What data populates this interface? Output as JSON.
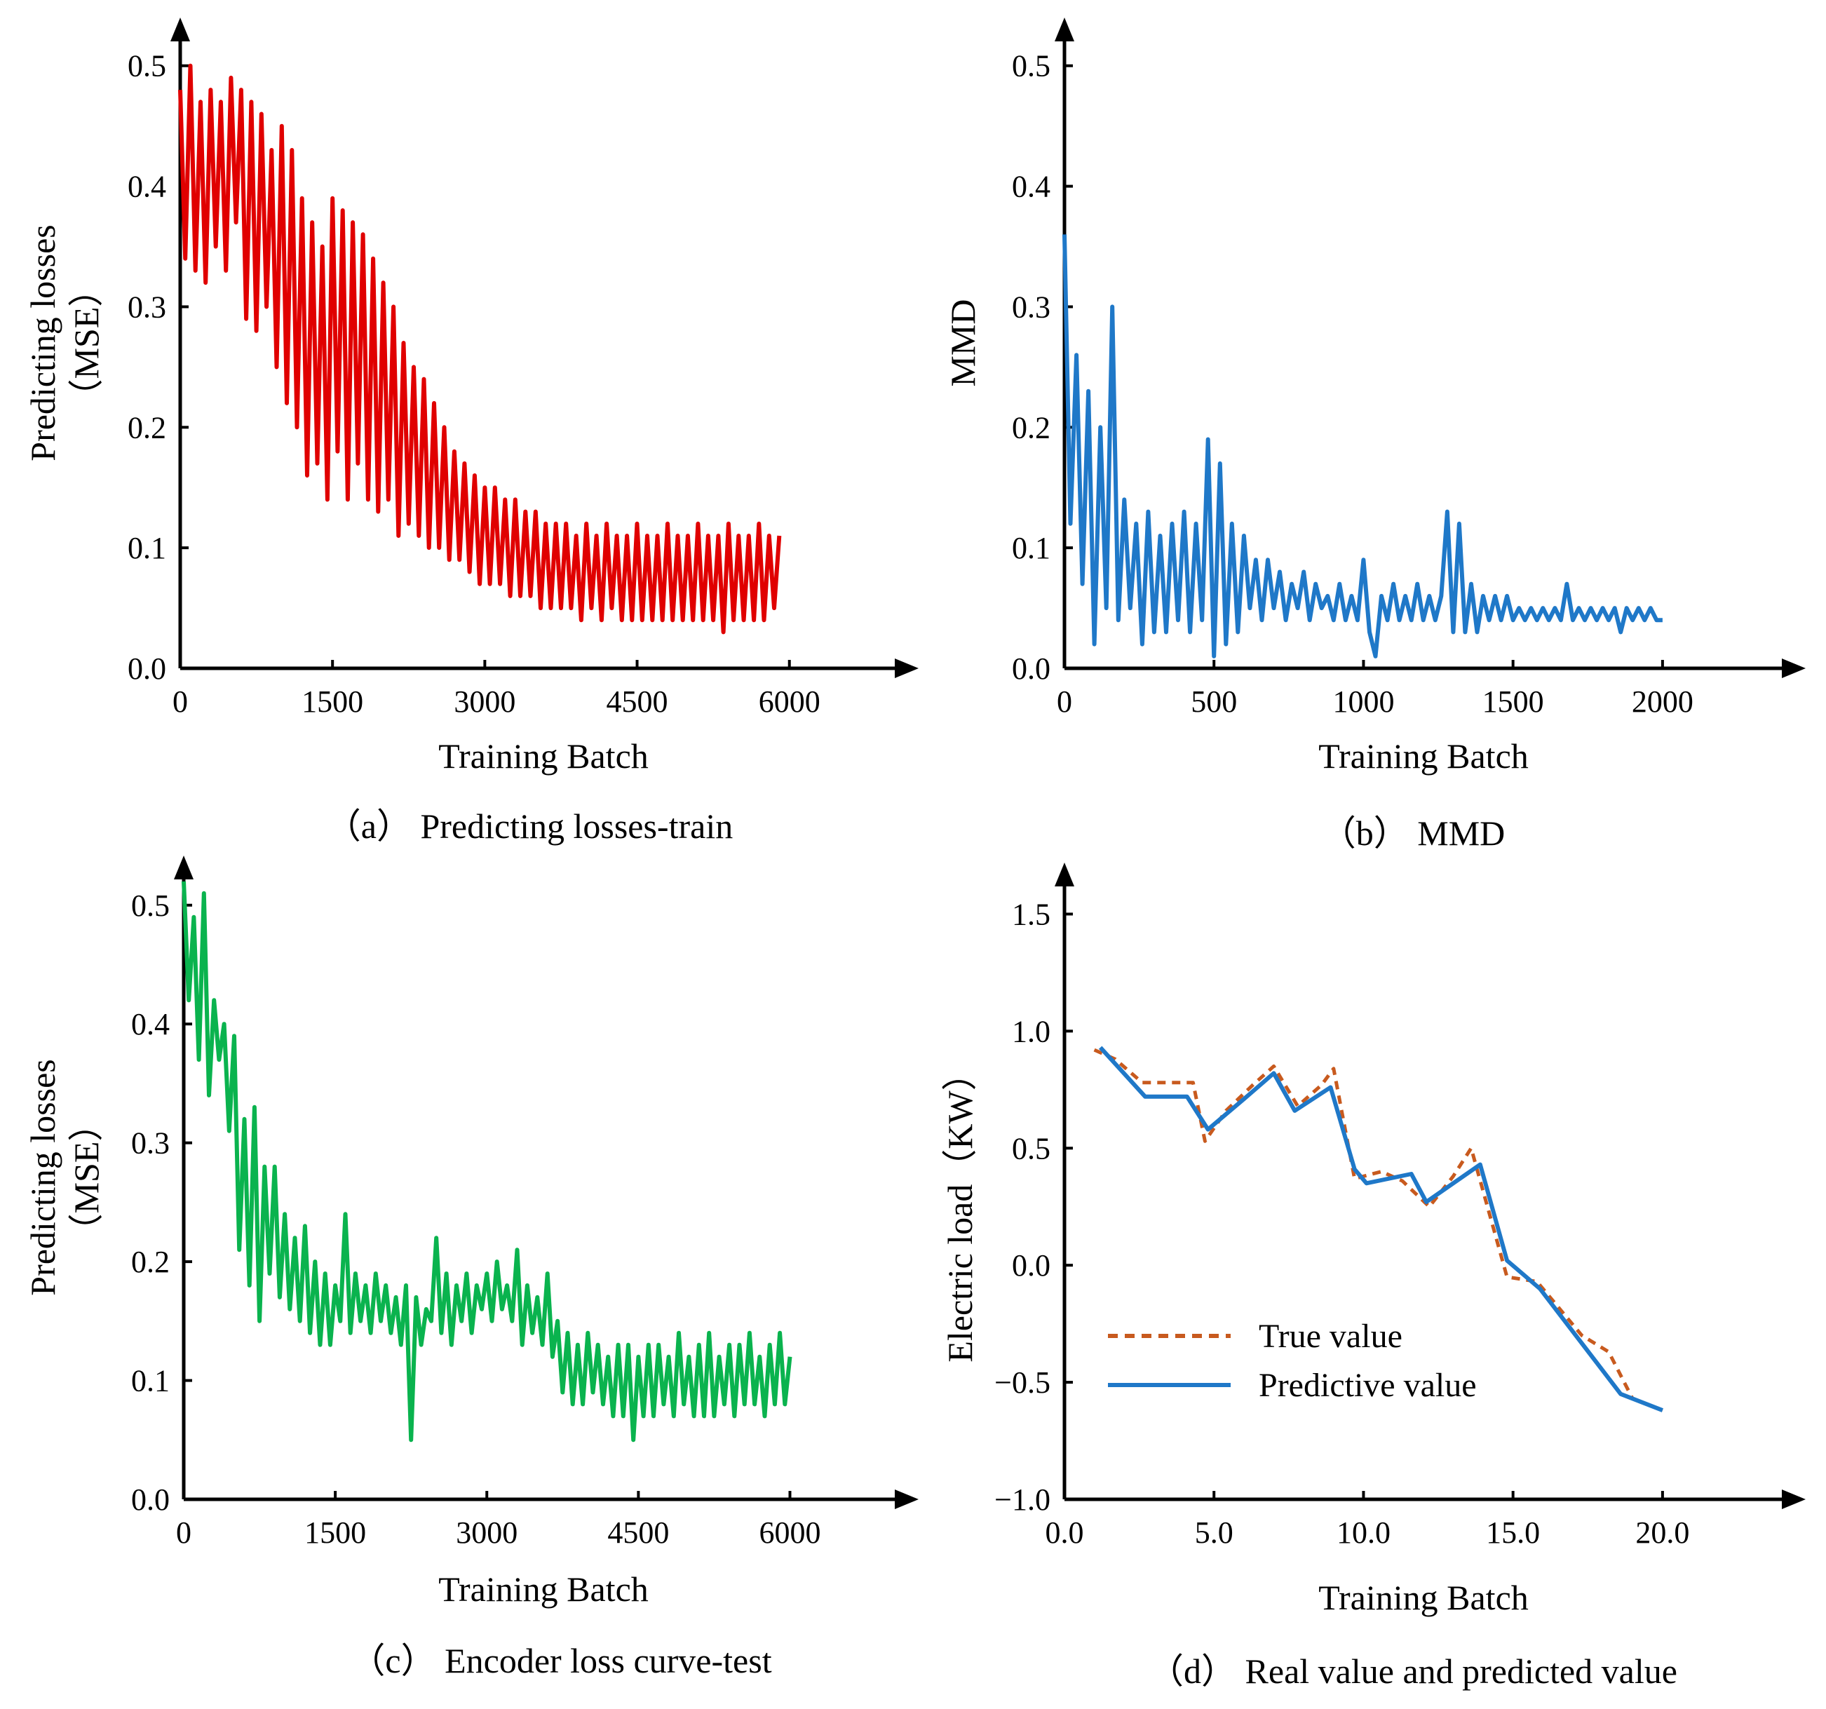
{
  "chart_data": [
    {
      "id": "a",
      "type": "line",
      "caption": "（a） Predicting losses-train",
      "xlabel": "Training Batch",
      "ylabel": "Predicting losses",
      "ylabel2": "（MSE）",
      "xticks": [
        "0",
        "1500",
        "3000",
        "4500",
        "6000"
      ],
      "yticks": [
        "0.0",
        "0.1",
        "0.2",
        "0.3",
        "0.4",
        "0.5"
      ],
      "xlim": [
        0,
        7100
      ],
      "ylim": [
        0,
        0.54
      ],
      "series": [
        {
          "color": "#e00000",
          "x": [
            0,
            50,
            100,
            150,
            200,
            250,
            300,
            350,
            400,
            450,
            500,
            550,
            600,
            650,
            700,
            750,
            800,
            850,
            900,
            950,
            1000,
            1050,
            1100,
            1150,
            1200,
            1250,
            1300,
            1350,
            1400,
            1450,
            1500,
            1550,
            1600,
            1650,
            1700,
            1750,
            1800,
            1850,
            1900,
            1950,
            2000,
            2050,
            2100,
            2150,
            2200,
            2250,
            2300,
            2350,
            2400,
            2450,
            2500,
            2550,
            2600,
            2650,
            2700,
            2750,
            2800,
            2850,
            2900,
            2950,
            3000,
            3050,
            3100,
            3150,
            3200,
            3250,
            3300,
            3350,
            3400,
            3450,
            3500,
            3550,
            3600,
            3650,
            3700,
            3750,
            3800,
            3850,
            3900,
            3950,
            4000,
            4050,
            4100,
            4150,
            4200,
            4250,
            4300,
            4350,
            4400,
            4450,
            4500,
            4550,
            4600,
            4650,
            4700,
            4750,
            4800,
            4850,
            4900,
            4950,
            5000,
            5050,
            5100,
            5150,
            5200,
            5250,
            5300,
            5350,
            5400,
            5450,
            5500,
            5550,
            5600,
            5650,
            5700,
            5750,
            5800,
            5850,
            5900
          ],
          "values": [
            0.48,
            0.34,
            0.5,
            0.33,
            0.47,
            0.32,
            0.48,
            0.35,
            0.47,
            0.33,
            0.49,
            0.37,
            0.48,
            0.29,
            0.47,
            0.28,
            0.46,
            0.3,
            0.43,
            0.25,
            0.45,
            0.22,
            0.43,
            0.2,
            0.39,
            0.16,
            0.37,
            0.17,
            0.35,
            0.14,
            0.39,
            0.18,
            0.38,
            0.14,
            0.37,
            0.17,
            0.36,
            0.14,
            0.34,
            0.13,
            0.32,
            0.14,
            0.3,
            0.11,
            0.27,
            0.12,
            0.25,
            0.11,
            0.24,
            0.1,
            0.22,
            0.1,
            0.2,
            0.09,
            0.18,
            0.09,
            0.17,
            0.08,
            0.16,
            0.07,
            0.15,
            0.07,
            0.15,
            0.07,
            0.14,
            0.06,
            0.14,
            0.06,
            0.13,
            0.06,
            0.13,
            0.05,
            0.12,
            0.05,
            0.12,
            0.05,
            0.12,
            0.05,
            0.11,
            0.04,
            0.12,
            0.05,
            0.11,
            0.04,
            0.12,
            0.05,
            0.11,
            0.04,
            0.11,
            0.04,
            0.12,
            0.04,
            0.11,
            0.04,
            0.11,
            0.04,
            0.12,
            0.04,
            0.11,
            0.04,
            0.11,
            0.04,
            0.12,
            0.04,
            0.11,
            0.04,
            0.11,
            0.03,
            0.12,
            0.04,
            0.11,
            0.04,
            0.11,
            0.04,
            0.12,
            0.04,
            0.11,
            0.05,
            0.11
          ]
        }
      ]
    },
    {
      "id": "b",
      "type": "line",
      "caption": "（b） MMD",
      "xlabel": "Training Batch",
      "ylabel": "MMD",
      "ylabel2": "",
      "xticks": [
        "0",
        "500",
        "1000",
        "1500",
        "2000"
      ],
      "yticks": [
        "0.0",
        "0.1",
        "0.2",
        "0.3",
        "0.4",
        "0.5"
      ],
      "xlim": [
        0,
        2420
      ],
      "ylim": [
        0,
        0.54
      ],
      "series": [
        {
          "color": "#1f78c8",
          "x": [
            0,
            20,
            40,
            60,
            80,
            100,
            120,
            140,
            160,
            180,
            200,
            220,
            240,
            260,
            280,
            300,
            320,
            340,
            360,
            380,
            400,
            420,
            440,
            460,
            480,
            500,
            520,
            540,
            560,
            580,
            600,
            620,
            640,
            660,
            680,
            700,
            720,
            740,
            760,
            780,
            800,
            820,
            840,
            860,
            880,
            900,
            920,
            940,
            960,
            980,
            1000,
            1020,
            1040,
            1060,
            1080,
            1100,
            1120,
            1140,
            1160,
            1180,
            1200,
            1220,
            1240,
            1260,
            1280,
            1300,
            1320,
            1340,
            1360,
            1380,
            1400,
            1420,
            1440,
            1460,
            1480,
            1500,
            1520,
            1540,
            1560,
            1580,
            1600,
            1620,
            1640,
            1660,
            1680,
            1700,
            1720,
            1740,
            1760,
            1780,
            1800,
            1820,
            1840,
            1860,
            1880,
            1900,
            1920,
            1940,
            1960,
            1980,
            2000
          ],
          "values": [
            0.36,
            0.12,
            0.26,
            0.07,
            0.23,
            0.02,
            0.2,
            0.05,
            0.3,
            0.04,
            0.14,
            0.05,
            0.12,
            0.02,
            0.13,
            0.03,
            0.11,
            0.03,
            0.12,
            0.04,
            0.13,
            0.03,
            0.12,
            0.04,
            0.19,
            0.01,
            0.17,
            0.02,
            0.12,
            0.03,
            0.11,
            0.05,
            0.09,
            0.04,
            0.09,
            0.05,
            0.08,
            0.04,
            0.07,
            0.05,
            0.08,
            0.04,
            0.07,
            0.05,
            0.06,
            0.04,
            0.07,
            0.04,
            0.06,
            0.04,
            0.09,
            0.03,
            0.01,
            0.06,
            0.04,
            0.07,
            0.04,
            0.06,
            0.04,
            0.07,
            0.04,
            0.06,
            0.04,
            0.06,
            0.13,
            0.03,
            0.12,
            0.03,
            0.07,
            0.03,
            0.06,
            0.04,
            0.06,
            0.04,
            0.06,
            0.04,
            0.05,
            0.04,
            0.05,
            0.04,
            0.05,
            0.04,
            0.05,
            0.04,
            0.07,
            0.04,
            0.05,
            0.04,
            0.05,
            0.04,
            0.05,
            0.04,
            0.05,
            0.03,
            0.05,
            0.04,
            0.05,
            0.04,
            0.05,
            0.04,
            0.04
          ]
        }
      ]
    },
    {
      "id": "c",
      "type": "line",
      "caption": "（c） Encoder loss curve-test",
      "xlabel": "Training Batch",
      "ylabel": "Predicting losses",
      "ylabel2": "（MSE）",
      "xticks": [
        "0",
        "1500",
        "3000",
        "4500",
        "6000"
      ],
      "yticks": [
        "0.0",
        "0.1",
        "0.2",
        "0.3",
        "0.4",
        "0.5"
      ],
      "xlim": [
        0,
        7100
      ],
      "ylim": [
        0,
        0.54
      ],
      "series": [
        {
          "color": "#0ab34e",
          "x": [
            0,
            50,
            100,
            150,
            200,
            250,
            300,
            350,
            400,
            450,
            500,
            550,
            600,
            650,
            700,
            750,
            800,
            850,
            900,
            950,
            1000,
            1050,
            1100,
            1150,
            1200,
            1250,
            1300,
            1350,
            1400,
            1450,
            1500,
            1550,
            1600,
            1650,
            1700,
            1750,
            1800,
            1850,
            1900,
            1950,
            2000,
            2050,
            2100,
            2150,
            2200,
            2250,
            2300,
            2350,
            2400,
            2450,
            2500,
            2550,
            2600,
            2650,
            2700,
            2750,
            2800,
            2850,
            2900,
            2950,
            3000,
            3050,
            3100,
            3150,
            3200,
            3250,
            3300,
            3350,
            3400,
            3450,
            3500,
            3550,
            3600,
            3650,
            3700,
            3750,
            3800,
            3850,
            3900,
            3950,
            4000,
            4050,
            4100,
            4150,
            4200,
            4250,
            4300,
            4350,
            4400,
            4450,
            4500,
            4550,
            4600,
            4650,
            4700,
            4750,
            4800,
            4850,
            4900,
            4950,
            5000,
            5050,
            5100,
            5150,
            5200,
            5250,
            5300,
            5350,
            5400,
            5450,
            5500,
            5550,
            5600,
            5650,
            5700,
            5750,
            5800,
            5850,
            5900,
            5950,
            6000
          ],
          "values": [
            0.52,
            0.42,
            0.49,
            0.37,
            0.51,
            0.34,
            0.42,
            0.37,
            0.4,
            0.31,
            0.39,
            0.21,
            0.32,
            0.18,
            0.33,
            0.15,
            0.28,
            0.19,
            0.28,
            0.17,
            0.24,
            0.16,
            0.22,
            0.15,
            0.23,
            0.14,
            0.2,
            0.13,
            0.19,
            0.13,
            0.18,
            0.15,
            0.24,
            0.14,
            0.19,
            0.15,
            0.18,
            0.14,
            0.19,
            0.15,
            0.18,
            0.14,
            0.17,
            0.13,
            0.18,
            0.05,
            0.17,
            0.13,
            0.16,
            0.15,
            0.22,
            0.14,
            0.19,
            0.13,
            0.18,
            0.15,
            0.19,
            0.14,
            0.18,
            0.16,
            0.19,
            0.15,
            0.2,
            0.16,
            0.18,
            0.15,
            0.21,
            0.13,
            0.18,
            0.14,
            0.17,
            0.13,
            0.19,
            0.12,
            0.15,
            0.09,
            0.14,
            0.08,
            0.13,
            0.08,
            0.14,
            0.09,
            0.13,
            0.08,
            0.12,
            0.07,
            0.13,
            0.07,
            0.13,
            0.05,
            0.12,
            0.07,
            0.13,
            0.07,
            0.13,
            0.08,
            0.12,
            0.07,
            0.14,
            0.08,
            0.12,
            0.07,
            0.13,
            0.07,
            0.14,
            0.07,
            0.12,
            0.08,
            0.13,
            0.07,
            0.13,
            0.08,
            0.14,
            0.08,
            0.12,
            0.07,
            0.13,
            0.08,
            0.14,
            0.08,
            0.12
          ]
        }
      ]
    },
    {
      "id": "d",
      "type": "line",
      "caption": "（d） Real value and predicted value",
      "xlabel": "Training Batch",
      "ylabel": "Electric load（KW）",
      "ylabel2": "",
      "xticks": [
        "0.0",
        "5.0",
        "10.0",
        "15.0",
        "20.0"
      ],
      "yticks": [
        "−1.0",
        "−0.5",
        "0.0",
        "0.5",
        "1.0",
        "1.5"
      ],
      "xlim": [
        0,
        24.2
      ],
      "ylim": [
        -1.0,
        1.72
      ],
      "legend_position": "lower-left",
      "series": [
        {
          "name": "True value",
          "color": "#c85a1e",
          "dashed": true,
          "x": [
            1.0,
            1.7,
            2.6,
            3.4,
            4.3,
            4.7,
            5.4,
            6.3,
            7.0,
            7.8,
            8.6,
            9.0,
            9.7,
            10.6,
            11.3,
            12.2,
            13.0,
            13.6,
            14.8,
            15.8,
            17.3,
            18.2,
            19.0,
            20.0
          ],
          "values": [
            0.92,
            0.88,
            0.78,
            0.78,
            0.78,
            0.53,
            0.66,
            0.77,
            0.85,
            0.68,
            0.77,
            0.84,
            0.37,
            0.4,
            0.36,
            0.25,
            0.38,
            0.5,
            -0.05,
            -0.07,
            -0.3,
            -0.37,
            -0.57,
            -0.62
          ]
        },
        {
          "name": "Predictive value",
          "color": "#1f78c8",
          "dashed": false,
          "x": [
            1.2,
            2.7,
            4.1,
            4.8,
            6.0,
            7.0,
            7.7,
            8.9,
            9.7,
            10.1,
            11.6,
            12.1,
            13.9,
            14.8,
            15.9,
            17.4,
            18.6,
            20.0
          ],
          "values": [
            0.93,
            0.72,
            0.72,
            0.58,
            0.71,
            0.82,
            0.66,
            0.76,
            0.41,
            0.35,
            0.39,
            0.27,
            0.43,
            0.02,
            -0.1,
            -0.35,
            -0.55,
            -0.62
          ]
        }
      ]
    }
  ]
}
